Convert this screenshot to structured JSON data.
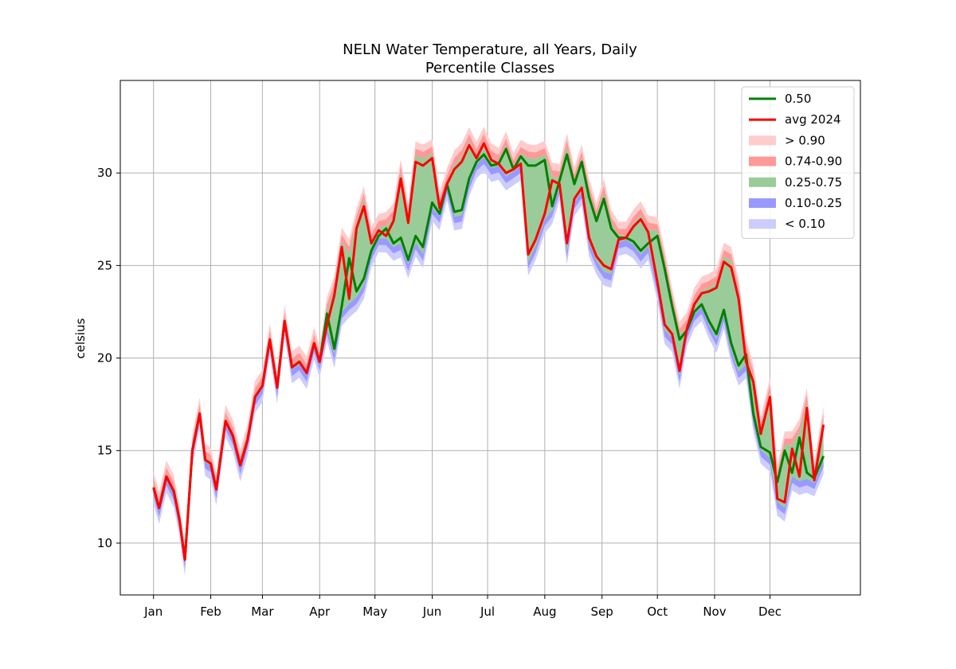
{
  "chart_data": {
    "type": "area",
    "title": "NELN Water Temperature, all Years, Daily",
    "subtitle": "Percentile Classes",
    "xlabel": "",
    "ylabel": "celsius",
    "x_ticks": [
      "Jan",
      "Feb",
      "Mar",
      "Apr",
      "May",
      "Jun",
      "Jul",
      "Aug",
      "Sep",
      "Oct",
      "Nov",
      "Dec"
    ],
    "x_tick_days": [
      1,
      32,
      60,
      91,
      121,
      152,
      182,
      213,
      244,
      274,
      305,
      335
    ],
    "xlim": [
      -17,
      384
    ],
    "y_ticks": [
      10,
      15,
      20,
      25,
      30
    ],
    "ylim": [
      7.2,
      35.0
    ],
    "grid": true,
    "legend_position": "top-right",
    "legend": [
      {
        "label": "0.50",
        "kind": "line",
        "color": "#008000"
      },
      {
        "label": "avg 2024",
        "kind": "line",
        "color": "#ff0000"
      },
      {
        "label": "> 0.90",
        "kind": "patch",
        "color": "#ffcccc"
      },
      {
        "label": "0.74-0.90",
        "kind": "patch",
        "color": "#ff9999"
      },
      {
        "label": "0.25-0.75",
        "kind": "patch",
        "color": "#99cc99"
      },
      {
        "label": "0.10-0.25",
        "kind": "patch",
        "color": "#9999ff"
      },
      {
        "label": "< 0.10",
        "kind": "patch",
        "color": "#ccccff"
      }
    ],
    "x": [
      1,
      4,
      8,
      12,
      15,
      18,
      22,
      26,
      29,
      32,
      35,
      40,
      44,
      48,
      52,
      56,
      60,
      64,
      68,
      72,
      76,
      80,
      84,
      88,
      91,
      95,
      99,
      103,
      107,
      111,
      115,
      119,
      123,
      127,
      131,
      135,
      139,
      143,
      147,
      152,
      156,
      160,
      164,
      168,
      172,
      176,
      180,
      184,
      188,
      192,
      196,
      200,
      204,
      208,
      213,
      217,
      221,
      225,
      229,
      233,
      237,
      241,
      245,
      249,
      253,
      257,
      261,
      265,
      269,
      274,
      278,
      282,
      286,
      290,
      294,
      298,
      302,
      306,
      310,
      314,
      318,
      322,
      326,
      330,
      335,
      339,
      343,
      347,
      351,
      355,
      359,
      364
    ],
    "series": [
      {
        "name": "0.50",
        "values": [
          13.0,
          11.9,
          13.6,
          12.8,
          11.3,
          9.1,
          15.0,
          17.0,
          14.5,
          14.3,
          12.9,
          16.6,
          15.8,
          14.2,
          15.6,
          17.9,
          18.5,
          21.0,
          18.4,
          22.0,
          19.5,
          19.8,
          19.2,
          20.8,
          19.8,
          22.4,
          20.5,
          22.8,
          25.4,
          23.6,
          24.3,
          25.8,
          26.6,
          27.0,
          26.2,
          26.5,
          25.3,
          26.6,
          26.0,
          28.4,
          27.8,
          29.4,
          27.9,
          28.0,
          29.7,
          30.6,
          31.0,
          30.4,
          30.5,
          31.3,
          30.2,
          30.9,
          30.4,
          30.4,
          30.7,
          28.2,
          29.6,
          31.0,
          29.4,
          30.6,
          28.7,
          27.4,
          28.6,
          27.0,
          26.5,
          26.5,
          26.3,
          25.8,
          26.2,
          26.6,
          24.8,
          22.8,
          21.0,
          21.5,
          22.5,
          22.9,
          22.0,
          21.3,
          22.6,
          20.8,
          19.6,
          20.2,
          17.0,
          15.2,
          14.9,
          13.3,
          15.0,
          13.8,
          15.7,
          13.8,
          13.5,
          14.7
        ],
        "color": "#008000"
      },
      {
        "name": "avg 2024",
        "values": [
          13.0,
          11.9,
          13.6,
          12.8,
          11.3,
          9.1,
          15.0,
          17.0,
          14.5,
          14.3,
          12.9,
          16.6,
          15.8,
          14.2,
          15.6,
          17.9,
          18.5,
          21.0,
          18.4,
          22.0,
          19.5,
          19.8,
          19.2,
          20.8,
          19.8,
          21.8,
          23.4,
          26.0,
          23.2,
          27.0,
          28.2,
          26.2,
          26.9,
          26.6,
          27.4,
          29.7,
          27.3,
          30.6,
          30.4,
          30.8,
          28.1,
          29.4,
          30.2,
          30.6,
          31.5,
          30.8,
          31.6,
          30.7,
          30.5,
          30.0,
          30.2,
          30.5,
          25.6,
          26.4,
          27.8,
          29.6,
          29.4,
          26.2,
          28.6,
          29.2,
          26.5,
          25.5,
          25.0,
          24.8,
          26.4,
          26.5,
          27.1,
          27.5,
          26.8,
          24.1,
          21.8,
          21.3,
          19.3,
          21.6,
          22.9,
          23.5,
          23.6,
          23.8,
          25.2,
          24.9,
          23.2,
          19.8,
          18.7,
          15.9,
          17.9,
          12.4,
          12.2,
          15.1,
          13.6,
          17.3,
          13.4,
          16.4
        ],
        "color": "#ff0000"
      }
    ]
  }
}
